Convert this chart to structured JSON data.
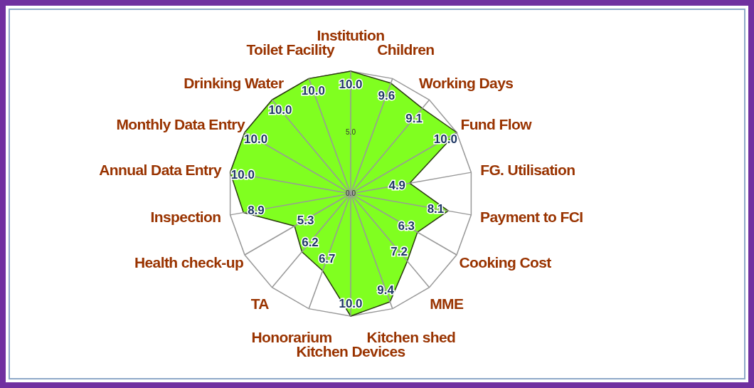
{
  "chart_data": {
    "type": "radar",
    "categories": [
      "Institution",
      "Children",
      "Working Days",
      "Fund Flow",
      "FG. Utilisation",
      "Payment to FCI",
      "Cooking Cost",
      "MME",
      "Kitchen shed",
      "Kitchen Devices",
      "Honorarium",
      "TA",
      "Health check-up",
      "Inspection",
      "Annual Data Entry",
      "Monthly Data Entry",
      "Drinking Water",
      "Toilet Facility"
    ],
    "series": [
      {
        "color": "#80ff20",
        "values": [
          10.0,
          9.6,
          9.1,
          10.0,
          4.9,
          8.1,
          6.3,
          7.2,
          9.4,
          10.0,
          6.7,
          6.2,
          5.3,
          8.9,
          10.0,
          10.0,
          10.0,
          10.0
        ],
        "value_labels": [
          "10.0",
          "9.6",
          "9.1",
          "10.0",
          "4.9",
          "8.1",
          "6.3",
          "7.2",
          "9.4",
          "10.0",
          "6.7",
          "6.2",
          "5.3",
          "8.9",
          "10.0",
          "10.0",
          "10.0",
          "10.0"
        ]
      }
    ],
    "ylim": [
      0,
      10
    ],
    "yticks": [
      {
        "value": 0,
        "label": "0.0"
      },
      {
        "value": 5,
        "label": "5.0"
      }
    ],
    "grid": true
  }
}
